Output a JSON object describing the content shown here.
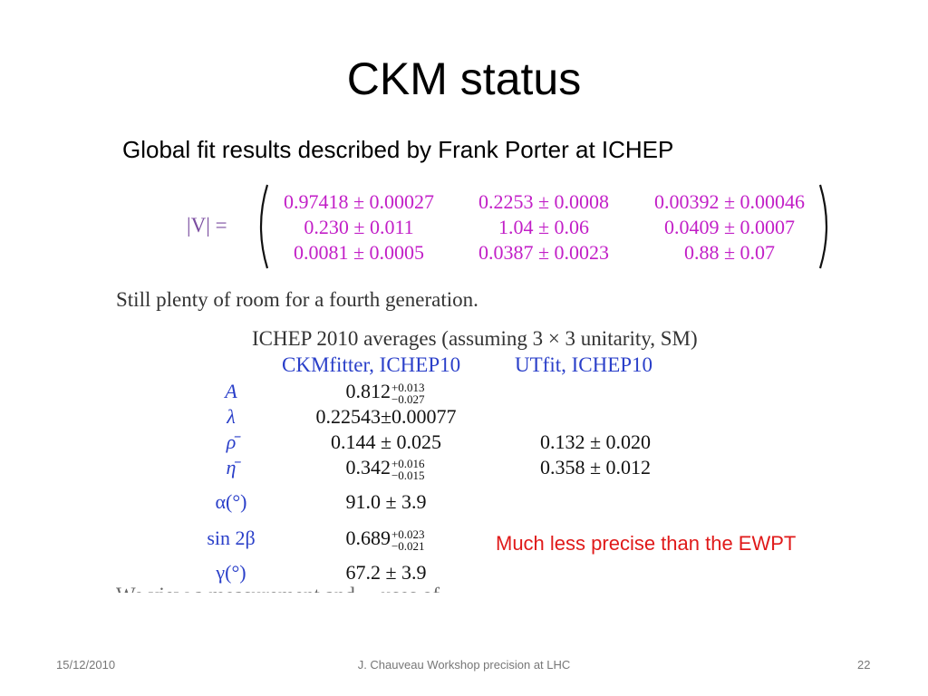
{
  "slide": {
    "title": "CKM status",
    "subtitle": "Global fit results described by Frank Porter at ICHEP"
  },
  "matrix": {
    "label": "|V| =",
    "rows": [
      [
        "0.97418 ± 0.00027",
        "0.2253 ± 0.0008",
        "0.00392 ± 0.00046"
      ],
      [
        "0.230 ± 0.011",
        "1.04 ± 0.06",
        "0.0409 ± 0.0007"
      ],
      [
        "0.0081 ± 0.0005",
        "0.0387 ± 0.0023",
        "0.88 ± 0.07"
      ]
    ]
  },
  "note": "Still plenty of room for a fourth generation.",
  "averages": {
    "title": "ICHEP 2010 averages (assuming 3 × 3 unitarity, SM)",
    "headers": [
      "CKMfitter, ICHEP10",
      "UTfit, ICHEP10"
    ],
    "rows": [
      {
        "param": "A",
        "ckm": {
          "base": "0.812",
          "up": "+0.013",
          "down": "−0.027"
        },
        "utfit": ""
      },
      {
        "param": "λ",
        "ckm": {
          "base": "0.22543±0.00077"
        },
        "utfit": ""
      },
      {
        "param": "ρ̄",
        "ckm": {
          "base": "0.144 ± 0.025"
        },
        "utfit": "0.132 ± 0.020"
      },
      {
        "param": "η̄",
        "ckm": {
          "base": "0.342",
          "up": "+0.016",
          "down": "−0.015"
        },
        "utfit": "0.358 ± 0.012"
      },
      {
        "param": "α(°)",
        "ckm": {
          "base": "91.0 ± 3.9"
        },
        "utfit": ""
      },
      {
        "param": "sin 2β",
        "ckm": {
          "base": "0.689",
          "up": "+0.023",
          "down": "−0.021"
        },
        "utfit": ""
      },
      {
        "param": "γ(°)",
        "ckm": {
          "base": "67.2 ± 3.9"
        },
        "utfit": ""
      }
    ]
  },
  "callout": "Much less precise than the EWPT",
  "truncated_line": "We view a measurement and ... uses of",
  "footer": {
    "date": "15/12/2010",
    "center": "J. Chauveau Workshop precision at LHC",
    "page": "22"
  },
  "colors": {
    "matrix_values": "#c21fc7",
    "table_headers": "#2a3fc9",
    "callout": "#e01a1a",
    "body_text": "#333333"
  }
}
